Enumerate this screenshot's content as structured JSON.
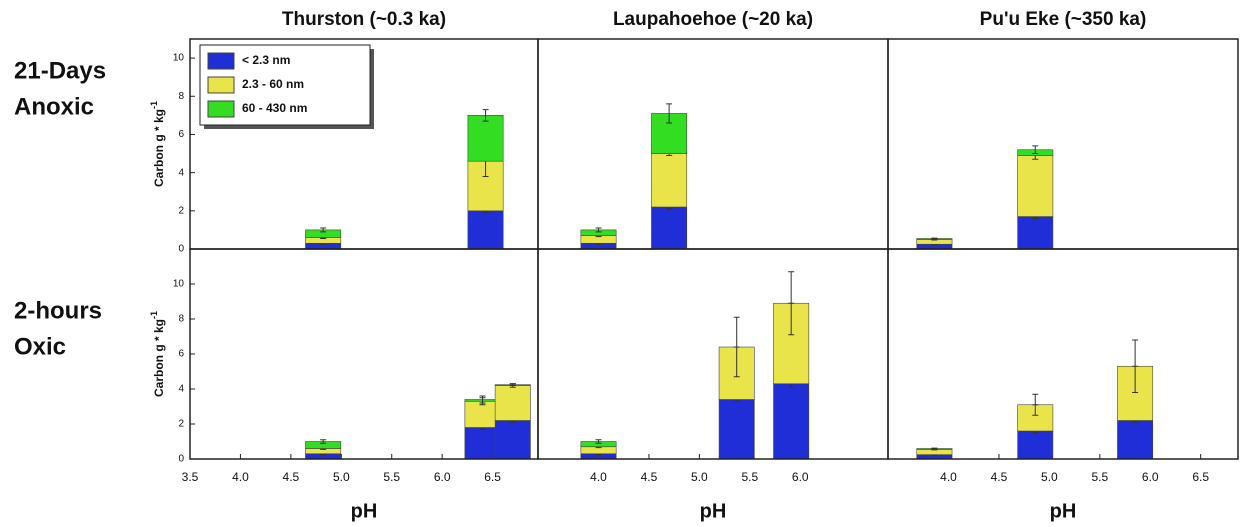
{
  "row_labels": [
    [
      "21-Days",
      "Anoxic"
    ],
    [
      "2-hours",
      "Oxic"
    ]
  ],
  "chart_data": [
    {
      "type": "bar",
      "stacked": true,
      "title": "Thurston (~0.3 ka)",
      "ylabel": "Carbon g * kg",
      "ylabel_sup": "-1",
      "x": [
        4.82,
        6.43
      ],
      "xlim": [
        3.5,
        6.95
      ],
      "ylim": [
        0,
        11
      ],
      "yticks": [
        0,
        2,
        4,
        6,
        8,
        10
      ],
      "legend": "upper left",
      "series": [
        {
          "name": "< 2.3 nm",
          "color": "#1f2ed6",
          "values": [
            0.3,
            2.0
          ],
          "errors": [
            0.05,
            0.1
          ]
        },
        {
          "name": "2.3 - 60 nm",
          "color": "#e8e44a",
          "values": [
            0.3,
            2.6
          ],
          "errors": [
            0.05,
            0.8
          ]
        },
        {
          "name": "60 - 430 nm",
          "color": "#33dd22",
          "values": [
            0.4,
            2.4
          ],
          "errors": [
            0.1,
            0.3
          ]
        }
      ]
    },
    {
      "type": "bar",
      "stacked": true,
      "title": "Laupahoehoe (~20 ka)",
      "x": [
        4.0,
        4.7
      ],
      "xlim": [
        3.4,
        6.87
      ],
      "ylim": [
        0,
        11
      ],
      "series": [
        {
          "color": "#1f2ed6",
          "values": [
            0.3,
            2.2
          ],
          "errors": [
            0.05,
            0.1
          ]
        },
        {
          "color": "#e8e44a",
          "values": [
            0.4,
            2.8
          ],
          "errors": [
            0.05,
            0.1
          ]
        },
        {
          "color": "#33dd22",
          "values": [
            0.3,
            2.1
          ],
          "errors": [
            0.1,
            0.5
          ]
        }
      ]
    },
    {
      "type": "bar",
      "stacked": true,
      "title": "Pu'u Eke (~350 ka)",
      "x": [
        3.86,
        4.86
      ],
      "xlim": [
        3.4,
        6.87
      ],
      "ylim": [
        0,
        11
      ],
      "series": [
        {
          "color": "#1f2ed6",
          "values": [
            0.25,
            1.7
          ],
          "errors": [
            0.03,
            0.1
          ]
        },
        {
          "color": "#e8e44a",
          "values": [
            0.25,
            3.2
          ],
          "errors": [
            0.03,
            0.2
          ]
        },
        {
          "color": "#33dd22",
          "values": [
            0.05,
            0.3
          ],
          "errors": [
            0.02,
            0.2
          ]
        }
      ]
    },
    {
      "type": "bar",
      "stacked": true,
      "xlabel": "pH",
      "ylabel": "Carbon g * kg",
      "ylabel_sup": "-1",
      "x": [
        4.82,
        6.4,
        6.7
      ],
      "xlim": [
        3.5,
        6.95
      ],
      "ylim": [
        0,
        12
      ],
      "yticks": [
        0,
        2,
        4,
        6,
        8,
        10
      ],
      "xticks": [
        3.5,
        {
          "value": 4,
          "label": "4.0"
        },
        4.5,
        {
          "value": 5,
          "label": "5.0"
        },
        5.5,
        {
          "value": 6,
          "label": "6.0"
        },
        6.5
      ],
      "series": [
        {
          "color": "#1f2ed6",
          "values": [
            0.3,
            1.8,
            2.2
          ],
          "errors": [
            0.05,
            0.1,
            0.1
          ]
        },
        {
          "color": "#e8e44a",
          "values": [
            0.3,
            1.5,
            2.0
          ],
          "errors": [
            0.05,
            0.2,
            0.1
          ]
        },
        {
          "color": "#33dd22",
          "values": [
            0.4,
            0.1,
            0.05
          ],
          "errors": [
            0.1,
            0.2,
            0.05
          ]
        }
      ]
    },
    {
      "type": "bar",
      "stacked": true,
      "xlabel": "pH",
      "x": [
        4.0,
        5.37,
        5.91
      ],
      "xlim": [
        3.4,
        6.87
      ],
      "ylim": [
        0,
        12
      ],
      "xticks": [
        {
          "value": 4,
          "label": "4.0"
        },
        4.5,
        {
          "value": 5,
          "label": "5.0"
        },
        5.5,
        {
          "value": 6,
          "label": "6.0"
        }
      ],
      "series": [
        {
          "color": "#1f2ed6",
          "values": [
            0.3,
            3.4,
            4.3
          ],
          "errors": [
            0.05,
            0.1,
            0.2
          ]
        },
        {
          "color": "#e8e44a",
          "values": [
            0.4,
            3.0,
            4.6
          ],
          "errors": [
            0.05,
            1.7,
            1.8
          ]
        },
        {
          "color": "#33dd22",
          "values": [
            0.3,
            0,
            0
          ],
          "errors": [
            0.1,
            0,
            0
          ]
        }
      ]
    },
    {
      "type": "bar",
      "stacked": true,
      "xlabel": "pH",
      "x": [
        3.86,
        4.86,
        5.85
      ],
      "xlim": [
        3.4,
        6.87
      ],
      "ylim": [
        0,
        12
      ],
      "xticks": [
        {
          "value": 4,
          "label": "4.0"
        },
        4.5,
        {
          "value": 5,
          "label": "5.0"
        },
        5.5,
        {
          "value": 6,
          "label": "6.0"
        },
        6.5
      ],
      "series": [
        {
          "color": "#1f2ed6",
          "values": [
            0.25,
            1.6,
            2.2
          ],
          "errors": [
            0.03,
            0.1,
            0.1
          ]
        },
        {
          "color": "#e8e44a",
          "values": [
            0.3,
            1.5,
            3.1
          ],
          "errors": [
            0.03,
            0.6,
            1.5
          ]
        },
        {
          "color": "#33dd22",
          "values": [
            0.05,
            0,
            0
          ],
          "errors": [
            0.02,
            0,
            0
          ]
        }
      ]
    }
  ]
}
